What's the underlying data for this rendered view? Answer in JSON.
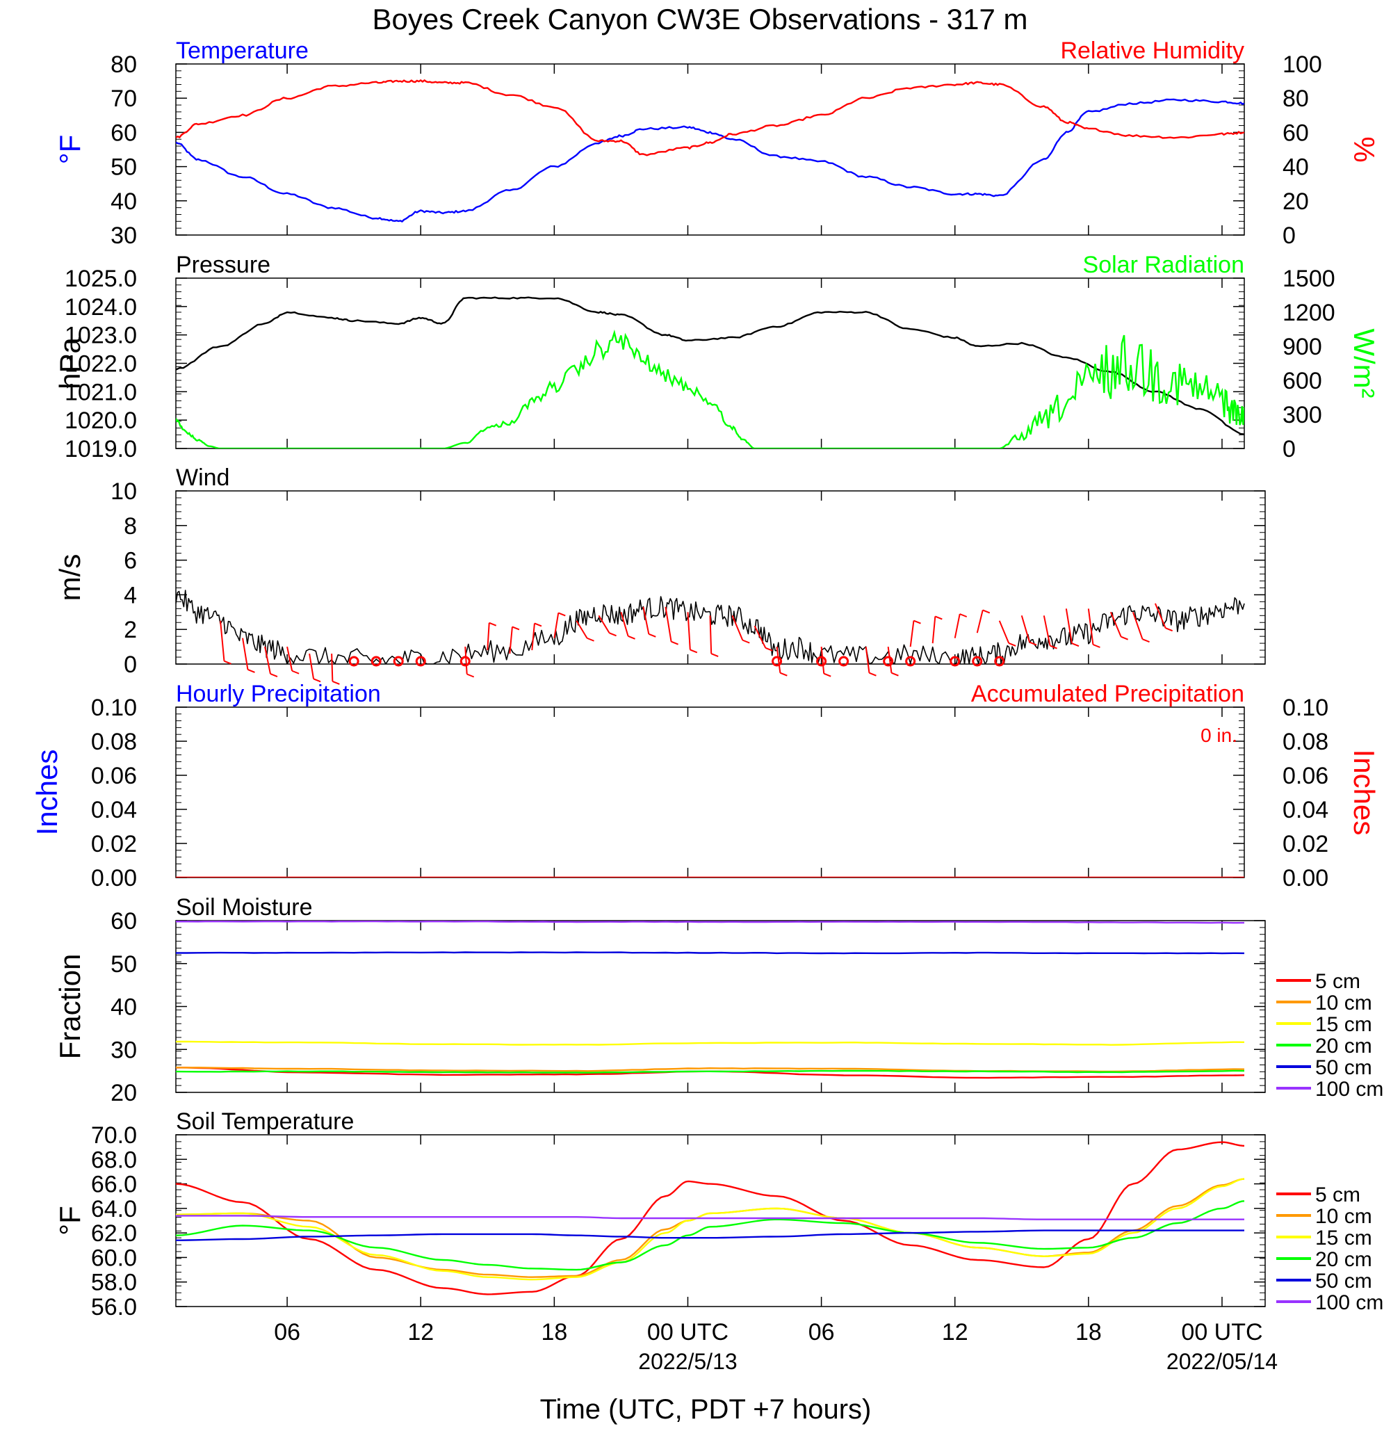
{
  "title": "Boyes Creek Canyon CW3E Observations - 317 m",
  "xaxis": {
    "title": "Time (UTC, PDT +7 hours)",
    "ticks": [
      {
        "hour": 6,
        "label": "06",
        "sub": ""
      },
      {
        "hour": 12,
        "label": "12",
        "sub": ""
      },
      {
        "hour": 18,
        "label": "18",
        "sub": ""
      },
      {
        "hour": 24,
        "label": "00 UTC",
        "sub": "2022/5/13"
      },
      {
        "hour": 30,
        "label": "06",
        "sub": ""
      },
      {
        "hour": 36,
        "label": "12",
        "sub": ""
      },
      {
        "hour": 42,
        "label": "18",
        "sub": ""
      },
      {
        "hour": 48,
        "label": "00 UTC",
        "sub": "2022/05/14"
      }
    ]
  },
  "colors": {
    "blue": "#0000ff",
    "red": "#ff0000",
    "green": "#00ff00",
    "black": "#000000",
    "orange": "#ff9900",
    "yellow": "#ffff00",
    "purple": "#9933ff",
    "darkblue": "#0000dd"
  },
  "chart_data": [
    {
      "type": "line",
      "id": "temp_rh",
      "title_left": "Temperature",
      "title_right": "Relative Humidity",
      "ylabel_left": "°F",
      "ylabel_right": "%",
      "ylim_left": [
        30,
        80
      ],
      "ylim_right": [
        0,
        100
      ],
      "yticks_left": [
        "30",
        "40",
        "50",
        "60",
        "70",
        "80"
      ],
      "yticks_right": [
        "0",
        "20",
        "40",
        "60",
        "80",
        "100"
      ],
      "x_hours": [
        1,
        2,
        4,
        6,
        8,
        10,
        11,
        12,
        13,
        14,
        16,
        18,
        20,
        21,
        22,
        24,
        25,
        26,
        28,
        30,
        32,
        34,
        36,
        37,
        38,
        40,
        41,
        42,
        44,
        46,
        48,
        49
      ],
      "series": [
        {
          "name": "Temperature",
          "axis": "left",
          "color": "#0000ff",
          "values": [
            57,
            52,
            47,
            42,
            38,
            35,
            34,
            37,
            36.5,
            37,
            43,
            50,
            57,
            59,
            61,
            61.5,
            60,
            58,
            53,
            51.5,
            47,
            44,
            42,
            42,
            41.5,
            52,
            60,
            66,
            68.5,
            69.5,
            69,
            68.5
          ]
        },
        {
          "name": "Relative Humidity",
          "axis": "right",
          "color": "#ff0000",
          "values": [
            57,
            65,
            70,
            80,
            87,
            89,
            90,
            90,
            89,
            89,
            82,
            75,
            55,
            55,
            47,
            51,
            54,
            59,
            64,
            70,
            80,
            86,
            88,
            89,
            88,
            75,
            66,
            62,
            58,
            57,
            59,
            60
          ]
        }
      ]
    },
    {
      "type": "line",
      "id": "pressure_solar",
      "title_left": "Pressure",
      "title_right": "Solar Radiation",
      "ylabel_left": "hPa",
      "ylabel_right": "W/m²",
      "ylim_left": [
        1019.0,
        1025.0
      ],
      "ylim_right": [
        0,
        1500
      ],
      "yticks_left": [
        "1019.0",
        "1020.0",
        "1021.0",
        "1022.0",
        "1023.0",
        "1024.0",
        "1025.0"
      ],
      "yticks_right": [
        "0",
        "300",
        "600",
        "900",
        "1200",
        "1500"
      ],
      "x_hours": [
        1,
        3,
        5,
        6,
        8,
        9,
        11,
        12,
        13,
        14,
        16,
        18,
        20,
        21,
        23,
        24,
        26,
        28,
        30,
        32,
        34,
        36,
        37,
        39,
        41,
        43,
        45,
        47,
        49
      ],
      "series": [
        {
          "name": "Pressure",
          "axis": "left",
          "color": "#000000",
          "values": [
            1021.8,
            1022.6,
            1023.4,
            1023.8,
            1023.6,
            1023.5,
            1023.4,
            1023.6,
            1023.4,
            1024.3,
            1024.3,
            1024.3,
            1023.8,
            1023.7,
            1023.0,
            1022.8,
            1022.9,
            1023.3,
            1023.8,
            1023.8,
            1023.2,
            1022.9,
            1022.6,
            1022.7,
            1022.2,
            1021.7,
            1021.0,
            1020.4,
            1019.5
          ]
        }
      ],
      "solar": {
        "name": "Solar Radiation",
        "axis": "right",
        "color": "#00ff00",
        "x_hours": [
          1,
          1.5,
          2,
          2.5,
          3,
          13,
          14,
          15,
          16,
          17,
          18,
          19,
          20,
          21,
          22,
          23,
          24,
          25,
          26,
          26.5,
          27,
          38,
          39,
          40,
          41,
          42,
          43,
          44,
          45,
          46,
          47,
          48,
          48.5,
          49
        ],
        "values": [
          280,
          150,
          80,
          20,
          0,
          0,
          50,
          200,
          250,
          450,
          600,
          750,
          950,
          1050,
          850,
          700,
          600,
          450,
          200,
          80,
          0,
          0,
          150,
          350,
          550,
          800,
          950,
          1050,
          900,
          800,
          700,
          600,
          450,
          380
        ]
      }
    },
    {
      "type": "line",
      "id": "wind",
      "title_left": "Wind",
      "ylabel_left": "m/s",
      "ylim_left": [
        0,
        10
      ],
      "yticks_left": [
        "0",
        "2",
        "4",
        "6",
        "8",
        "10"
      ],
      "x_hours": [
        1,
        2,
        3,
        4,
        5,
        6,
        8,
        10,
        12,
        14,
        16,
        18,
        19,
        20,
        21,
        22,
        23,
        24,
        25,
        26,
        27,
        28,
        29,
        30,
        32,
        34,
        36,
        37,
        38,
        39,
        40,
        41,
        42,
        43,
        44,
        45,
        46,
        47,
        48,
        49
      ],
      "series": [
        {
          "name": "Wind speed",
          "axis": "left",
          "color": "#000000",
          "values": [
            4.0,
            3.0,
            2.5,
            1.5,
            1.0,
            0.6,
            0.3,
            0.2,
            0.3,
            0.6,
            0.8,
            1.5,
            2.5,
            3.0,
            2.8,
            3.2,
            3.3,
            3.0,
            2.8,
            2.8,
            2.2,
            0.8,
            1.0,
            0.5,
            0.4,
            0.5,
            0.3,
            0.4,
            0.6,
            1.2,
            1.5,
            1.5,
            1.8,
            2.5,
            3.0,
            2.8,
            2.5,
            2.8,
            3.2,
            3.5
          ]
        }
      ],
      "barbs": [
        {
          "hour": 3,
          "speed": 2.5,
          "len": 60,
          "ang": 165
        },
        {
          "hour": 4,
          "speed": 1.5,
          "len": 50,
          "ang": 155
        },
        {
          "hour": 5,
          "speed": 1.0,
          "len": 45,
          "ang": 150
        },
        {
          "hour": 6,
          "speed": 1.0,
          "len": 40,
          "ang": 150
        },
        {
          "hour": 7,
          "speed": 0.6,
          "len": 40,
          "ang": 155
        },
        {
          "hour": 8,
          "speed": 0.6,
          "len": 40,
          "ang": 175
        },
        {
          "hour": 14,
          "speed": 1.0,
          "len": 40,
          "ang": 170
        },
        {
          "hour": 15,
          "speed": 0.8,
          "len": 40,
          "ang": 10
        },
        {
          "hour": 16,
          "speed": 0.6,
          "len": 40,
          "ang": 15
        },
        {
          "hour": 17,
          "speed": 0.8,
          "len": 40,
          "ang": 15
        },
        {
          "hour": 18,
          "speed": 1.5,
          "len": 40,
          "ang": 25
        },
        {
          "hour": 19,
          "speed": 2.5,
          "len": 50,
          "ang": 120
        },
        {
          "hour": 20,
          "speed": 2.8,
          "len": 50,
          "ang": 120
        },
        {
          "hour": 21,
          "speed": 3.0,
          "len": 45,
          "ang": 140
        },
        {
          "hour": 22,
          "speed": 3.3,
          "len": 45,
          "ang": 150
        },
        {
          "hour": 23,
          "speed": 3.3,
          "len": 55,
          "ang": 155
        },
        {
          "hour": 24,
          "speed": 3.0,
          "len": 55,
          "ang": 170
        },
        {
          "hour": 25,
          "speed": 2.8,
          "len": 55,
          "ang": 175
        },
        {
          "hour": 26,
          "speed": 2.8,
          "len": 55,
          "ang": 130
        },
        {
          "hour": 27,
          "speed": 2.2,
          "len": 55,
          "ang": 125
        },
        {
          "hour": 28,
          "speed": 1.0,
          "len": 40,
          "ang": 160
        },
        {
          "hour": 30,
          "speed": 1.0,
          "len": 40,
          "ang": 165
        },
        {
          "hour": 32,
          "speed": 1.0,
          "len": 40,
          "ang": 160
        },
        {
          "hour": 33,
          "speed": 1.0,
          "len": 40,
          "ang": 160
        },
        {
          "hour": 34,
          "speed": 1.0,
          "len": 40,
          "ang": 20
        },
        {
          "hour": 35,
          "speed": 1.2,
          "len": 40,
          "ang": 15
        },
        {
          "hour": 36,
          "speed": 1.5,
          "len": 40,
          "ang": 30
        },
        {
          "hour": 37,
          "speed": 1.8,
          "len": 40,
          "ang": 35
        },
        {
          "hour": 38,
          "speed": 2.5,
          "len": 50,
          "ang": 130
        },
        {
          "hour": 39,
          "speed": 2.8,
          "len": 50,
          "ang": 140
        },
        {
          "hour": 40,
          "speed": 2.8,
          "len": 50,
          "ang": 150
        },
        {
          "hour": 41,
          "speed": 3.2,
          "len": 55,
          "ang": 155
        },
        {
          "hour": 42,
          "speed": 3.2,
          "len": 55,
          "ang": 160
        },
        {
          "hour": 43,
          "speed": 3.0,
          "len": 55,
          "ang": 130
        },
        {
          "hour": 44,
          "speed": 3.0,
          "len": 55,
          "ang": 135
        },
        {
          "hour": 45,
          "speed": 3.5,
          "len": 55,
          "ang": 130
        }
      ],
      "calm_hours": [
        9,
        10,
        11,
        12,
        14,
        28,
        30,
        31,
        33,
        34,
        36,
        37,
        38
      ]
    },
    {
      "type": "line",
      "id": "precip",
      "title_left": "Hourly Precipitation",
      "title_right": "Accumulated Precipitation",
      "annotation": "0 in.",
      "ylabel_left": "Inches",
      "ylabel_right": "Inches",
      "ylim_left": [
        0,
        0.1
      ],
      "ylim_right": [
        0,
        0.1
      ],
      "yticks_left": [
        "0.00",
        "0.02",
        "0.04",
        "0.06",
        "0.08",
        "0.10"
      ],
      "yticks_right": [
        "0.00",
        "0.02",
        "0.04",
        "0.06",
        "0.08",
        "0.10"
      ],
      "x_hours": [
        1,
        49
      ],
      "series": [
        {
          "name": "Accumulated Precipitation",
          "axis": "right",
          "color": "#ff0000",
          "values": [
            0,
            0
          ]
        }
      ]
    },
    {
      "type": "line",
      "id": "soil_moisture",
      "title_left": "Soil Moisture",
      "ylabel_left": "Fraction",
      "ylim_left": [
        20,
        60
      ],
      "yticks_left": [
        "20",
        "30",
        "40",
        "50",
        "60"
      ],
      "x_hours": [
        1,
        7,
        13,
        19,
        25,
        31,
        37,
        43,
        49
      ],
      "series": [
        {
          "name": "5 cm",
          "color": "#ff0000",
          "values": [
            25.8,
            24.6,
            24.1,
            24.2,
            24.9,
            24.0,
            23.4,
            23.6,
            24.0
          ]
        },
        {
          "name": "10 cm",
          "color": "#ff9900",
          "values": [
            25.8,
            25.5,
            25.1,
            25.0,
            25.6,
            25.5,
            25.0,
            24.9,
            25.4
          ]
        },
        {
          "name": "15 cm",
          "color": "#ffff00",
          "values": [
            31.8,
            31.6,
            31.2,
            31.1,
            31.5,
            31.6,
            31.3,
            31.1,
            31.7
          ]
        },
        {
          "name": "20 cm",
          "color": "#00ff00",
          "values": [
            24.8,
            24.9,
            24.7,
            24.6,
            24.9,
            25.0,
            24.9,
            24.7,
            25.0
          ]
        },
        {
          "name": "50 cm",
          "color": "#0000dd",
          "values": [
            52.5,
            52.5,
            52.6,
            52.6,
            52.5,
            52.4,
            52.5,
            52.4,
            52.4
          ]
        },
        {
          "name": "100 cm",
          "color": "#9933ff",
          "values": [
            59.8,
            59.8,
            59.8,
            59.7,
            59.7,
            59.7,
            59.7,
            59.6,
            59.5
          ]
        }
      ]
    },
    {
      "type": "line",
      "id": "soil_temp",
      "title_left": "Soil Temperature",
      "ylabel_left": "°F",
      "ylim_left": [
        56,
        70
      ],
      "yticks_left": [
        "56.0",
        "58.0",
        "60.0",
        "62.0",
        "64.0",
        "66.0",
        "68.0",
        "70.0"
      ],
      "x_hours": [
        1,
        4,
        7,
        10,
        13,
        15,
        17,
        19,
        21,
        23,
        24,
        25,
        28,
        31,
        34,
        37,
        40,
        42,
        44,
        46,
        48,
        49
      ],
      "series": [
        {
          "name": "5 cm",
          "color": "#ff0000",
          "values": [
            66.0,
            64.5,
            61.5,
            59.0,
            57.5,
            57.0,
            57.2,
            58.5,
            61.5,
            65.0,
            66.2,
            66.0,
            65.0,
            63.0,
            61.0,
            59.8,
            59.2,
            61.5,
            66.0,
            68.8,
            69.4,
            69.1
          ]
        },
        {
          "name": "10 cm",
          "color": "#ff9900",
          "values": [
            63.5,
            63.6,
            63.0,
            60.0,
            59.0,
            58.6,
            58.4,
            58.5,
            59.8,
            62.3,
            63.0,
            63.6,
            64.0,
            63.2,
            62.0,
            60.8,
            60.1,
            60.4,
            62.2,
            64.2,
            65.9,
            66.4
          ]
        },
        {
          "name": "15 cm",
          "color": "#ffff00",
          "values": [
            63.5,
            63.6,
            62.5,
            60.2,
            58.9,
            58.4,
            58.2,
            58.4,
            59.6,
            62.0,
            63.0,
            63.6,
            64.0,
            63.2,
            62.0,
            60.8,
            60.1,
            60.3,
            62.0,
            64.0,
            65.8,
            66.4
          ]
        },
        {
          "name": "20 cm",
          "color": "#00ff00",
          "values": [
            61.8,
            62.6,
            62.2,
            60.8,
            59.8,
            59.4,
            59.1,
            59.0,
            59.6,
            61.0,
            61.8,
            62.5,
            63.1,
            62.8,
            62.0,
            61.2,
            60.7,
            60.8,
            61.6,
            62.8,
            64.0,
            64.6
          ]
        },
        {
          "name": "50 cm",
          "color": "#0000dd",
          "values": [
            61.4,
            61.5,
            61.7,
            61.8,
            61.9,
            61.9,
            61.9,
            61.8,
            61.7,
            61.6,
            61.6,
            61.6,
            61.7,
            61.9,
            62.0,
            62.1,
            62.2,
            62.2,
            62.2,
            62.2,
            62.2,
            62.2
          ]
        },
        {
          "name": "100 cm",
          "color": "#9933ff",
          "values": [
            63.4,
            63.4,
            63.3,
            63.3,
            63.3,
            63.3,
            63.3,
            63.3,
            63.2,
            63.2,
            63.2,
            63.2,
            63.2,
            63.2,
            63.2,
            63.2,
            63.1,
            63.1,
            63.1,
            63.1,
            63.1,
            63.1
          ]
        }
      ]
    }
  ],
  "legends": {
    "soil_moisture": [
      "5 cm",
      "10 cm",
      "15 cm",
      "20 cm",
      "50 cm",
      "100 cm"
    ],
    "soil_temp": [
      "5 cm",
      "10 cm",
      "15 cm",
      "20 cm",
      "50 cm",
      "100 cm"
    ]
  }
}
